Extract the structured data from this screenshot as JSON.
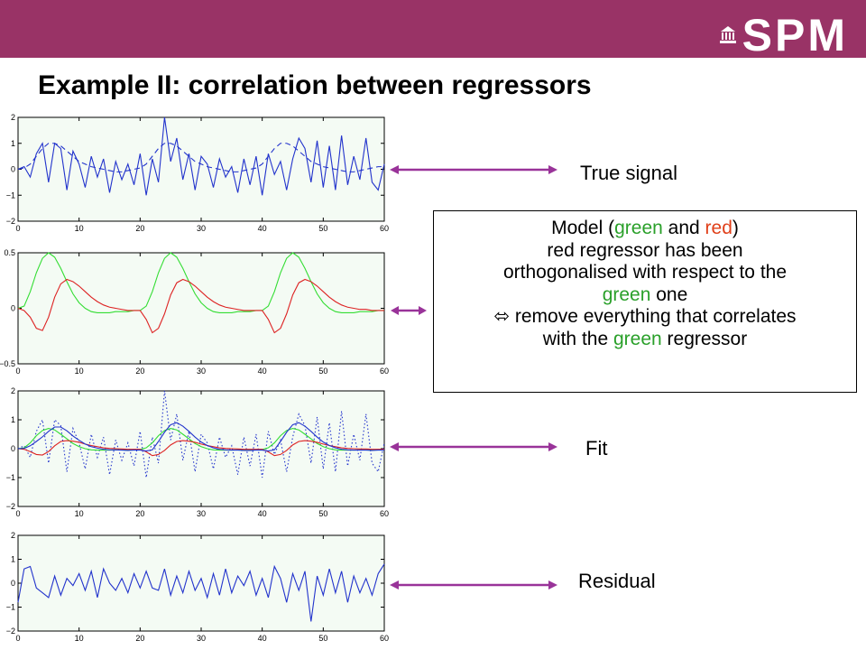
{
  "header": {
    "logo_text": "SPM",
    "colors": {
      "bar": "#993366",
      "logo": "#ffffff"
    }
  },
  "title": "Example II: correlation between regressors",
  "labels": {
    "true_signal": "True signal",
    "fit": "Fit",
    "residual": "Residual"
  },
  "model_box": {
    "line1_pre": "Model (",
    "line1_green": "green",
    "line1_mid": " and ",
    "line1_red": "red",
    "line1_post": ")",
    "line2": "red regressor has been",
    "line3": "orthogonalised with respect to the",
    "line4_green": "green",
    "line4_post": " one",
    "line5": "⬄ remove everything that correlates",
    "line6_pre": "with the ",
    "line6_green": "green",
    "line6_post": " regressor"
  },
  "colors": {
    "arrow": "#993399",
    "plot_bg": "#f4fbf4",
    "blue": "#2233cc",
    "green": "#33dd33",
    "red": "#dd2222"
  },
  "chart_data": [
    {
      "type": "line",
      "xlim": [
        0,
        60
      ],
      "ylim": [
        -2,
        2
      ],
      "xticks": [
        0,
        10,
        20,
        30,
        40,
        50,
        60
      ],
      "yticks": [
        2,
        1,
        0,
        -1,
        -2
      ],
      "yticklabels": [
        "2",
        "1",
        "0",
        "−1",
        "−2"
      ],
      "series": [
        {
          "color": "blue",
          "style": "dashed",
          "values": [
            0,
            0.05,
            0.2,
            0.5,
            0.8,
            1.0,
            1.0,
            0.9,
            0.7,
            0.5,
            0.3,
            0.2,
            0.1,
            0.05,
            0,
            -0.05,
            -0.1,
            -0.1,
            -0.05,
            0,
            0.05,
            0.2,
            0.5,
            0.8,
            1.0,
            1.0,
            0.9,
            0.7,
            0.5,
            0.3,
            0.2,
            0.1,
            0.05,
            0,
            -0.05,
            -0.1,
            -0.1,
            -0.05,
            0,
            0.05,
            0.2,
            0.5,
            0.8,
            1.0,
            1.0,
            0.9,
            0.7,
            0.5,
            0.3,
            0.2,
            0.1,
            0.05,
            0,
            -0.05,
            -0.1,
            -0.1,
            -0.05,
            0,
            0.05,
            0.1,
            0.1
          ]
        },
        {
          "color": "blue",
          "style": "solid",
          "values": [
            0,
            0.1,
            -0.3,
            0.6,
            1.0,
            -0.5,
            1.0,
            0.8,
            -0.8,
            0.7,
            0.2,
            -0.7,
            0.5,
            -0.3,
            0.4,
            -0.9,
            0.3,
            -0.4,
            0.2,
            -0.6,
            0.6,
            -1.0,
            0.4,
            -0.5,
            2.0,
            0.3,
            1.2,
            -0.4,
            0.6,
            -0.8,
            0.5,
            0.2,
            -0.7,
            0.4,
            -0.3,
            0.1,
            -0.9,
            0.4,
            -0.6,
            0.5,
            -1.0,
            0.6,
            -0.2,
            0.3,
            -0.8,
            0.4,
            1.2,
            0.8,
            -0.5,
            1.1,
            -0.7,
            0.9,
            -0.8,
            1.3,
            -0.6,
            0.5,
            -0.4,
            1.2,
            -0.5,
            -0.8,
            0.2
          ]
        }
      ]
    },
    {
      "type": "line",
      "xlim": [
        0,
        60
      ],
      "ylim": [
        -0.5,
        0.5
      ],
      "xticks": [
        0,
        10,
        20,
        30,
        40,
        50,
        60
      ],
      "yticks": [
        0.5,
        0,
        -0.5
      ],
      "yticklabels": [
        "0.5",
        "0",
        "−0.5"
      ],
      "series": [
        {
          "color": "green",
          "style": "solid",
          "values": [
            0,
            0.02,
            0.15,
            0.32,
            0.45,
            0.5,
            0.46,
            0.36,
            0.24,
            0.13,
            0.05,
            0.0,
            -0.03,
            -0.04,
            -0.04,
            -0.04,
            -0.03,
            -0.03,
            -0.03,
            -0.02,
            -0.02,
            0.02,
            0.15,
            0.32,
            0.45,
            0.5,
            0.46,
            0.36,
            0.24,
            0.13,
            0.05,
            0.0,
            -0.03,
            -0.04,
            -0.04,
            -0.04,
            -0.03,
            -0.03,
            -0.03,
            -0.02,
            -0.02,
            0.02,
            0.15,
            0.32,
            0.45,
            0.5,
            0.46,
            0.36,
            0.24,
            0.13,
            0.05,
            0.0,
            -0.03,
            -0.04,
            -0.04,
            -0.04,
            -0.03,
            -0.03,
            -0.03,
            -0.02,
            -0.02
          ]
        },
        {
          "color": "red",
          "style": "solid",
          "values": [
            0,
            -0.02,
            -0.08,
            -0.18,
            -0.2,
            -0.08,
            0.1,
            0.22,
            0.26,
            0.24,
            0.2,
            0.15,
            0.1,
            0.06,
            0.03,
            0.01,
            0.0,
            -0.01,
            -0.02,
            -0.02,
            -0.02,
            -0.1,
            -0.22,
            -0.18,
            -0.05,
            0.12,
            0.23,
            0.26,
            0.24,
            0.2,
            0.15,
            0.1,
            0.06,
            0.03,
            0.01,
            0.0,
            -0.01,
            -0.02,
            -0.02,
            -0.02,
            -0.02,
            -0.1,
            -0.22,
            -0.18,
            -0.05,
            0.12,
            0.23,
            0.26,
            0.24,
            0.2,
            0.15,
            0.1,
            0.06,
            0.03,
            0.01,
            0.0,
            -0.01,
            -0.01,
            -0.02,
            -0.02,
            -0.02
          ]
        }
      ]
    },
    {
      "type": "line",
      "xlim": [
        0,
        60
      ],
      "ylim": [
        -2,
        2
      ],
      "xticks": [
        0,
        10,
        20,
        30,
        40,
        50,
        60
      ],
      "yticks": [
        2,
        1,
        0,
        -1,
        -2
      ],
      "yticklabels": [
        "2",
        "1",
        "0",
        "−1",
        "−2"
      ],
      "series": [
        {
          "color": "blue",
          "style": "dotted",
          "values": [
            0,
            0.1,
            -0.3,
            0.6,
            1.0,
            -0.5,
            1.0,
            0.8,
            -0.8,
            0.7,
            0.2,
            -0.7,
            0.5,
            -0.3,
            0.4,
            -0.9,
            0.3,
            -0.4,
            0.2,
            -0.6,
            0.6,
            -1.0,
            0.4,
            -0.5,
            2.0,
            0.3,
            1.2,
            -0.4,
            0.6,
            -0.8,
            0.5,
            0.2,
            -0.7,
            0.4,
            -0.3,
            0.1,
            -0.9,
            0.4,
            -0.6,
            0.5,
            -1.0,
            0.6,
            -0.2,
            0.3,
            -0.8,
            0.4,
            1.2,
            0.8,
            -0.5,
            1.1,
            -0.7,
            0.9,
            -0.8,
            1.3,
            -0.6,
            0.5,
            -0.4,
            1.2,
            -0.5,
            -0.8,
            0.2
          ]
        },
        {
          "color": "green",
          "style": "solid",
          "values": [
            0,
            0.03,
            0.2,
            0.45,
            0.63,
            0.7,
            0.65,
            0.5,
            0.34,
            0.18,
            0.07,
            0.0,
            -0.04,
            -0.05,
            -0.05,
            -0.05,
            -0.04,
            -0.04,
            -0.04,
            -0.03,
            -0.03,
            0.03,
            0.2,
            0.45,
            0.63,
            0.7,
            0.65,
            0.5,
            0.34,
            0.18,
            0.07,
            0.0,
            -0.04,
            -0.05,
            -0.05,
            -0.05,
            -0.04,
            -0.04,
            -0.04,
            -0.03,
            -0.03,
            0.03,
            0.2,
            0.45,
            0.63,
            0.7,
            0.65,
            0.5,
            0.34,
            0.18,
            0.07,
            0.0,
            -0.04,
            -0.05,
            -0.05,
            -0.05,
            -0.04,
            -0.04,
            -0.04,
            -0.03,
            -0.03
          ]
        },
        {
          "color": "red",
          "style": "solid",
          "values": [
            0,
            -0.02,
            -0.1,
            -0.2,
            -0.22,
            -0.1,
            0.1,
            0.25,
            0.28,
            0.26,
            0.22,
            0.16,
            0.11,
            0.07,
            0.03,
            0.01,
            0.0,
            -0.01,
            -0.02,
            -0.02,
            -0.02,
            -0.11,
            -0.24,
            -0.2,
            -0.06,
            0.13,
            0.25,
            0.28,
            0.26,
            0.22,
            0.16,
            0.11,
            0.07,
            0.03,
            0.01,
            0.0,
            -0.01,
            -0.02,
            -0.02,
            -0.02,
            -0.02,
            -0.11,
            -0.24,
            -0.2,
            -0.06,
            0.13,
            0.25,
            0.28,
            0.26,
            0.22,
            0.16,
            0.11,
            0.07,
            0.03,
            0.01,
            0.0,
            -0.01,
            -0.01,
            -0.02,
            -0.02,
            -0.02
          ]
        },
        {
          "color": "blue",
          "style": "solid",
          "values": [
            0,
            0.01,
            0.1,
            0.25,
            0.41,
            0.6,
            0.75,
            0.75,
            0.62,
            0.44,
            0.29,
            0.16,
            0.07,
            0.02,
            -0.02,
            -0.04,
            -0.04,
            -0.05,
            -0.06,
            -0.05,
            -0.05,
            -0.08,
            -0.04,
            0.25,
            0.57,
            0.83,
            0.9,
            0.78,
            0.6,
            0.4,
            0.23,
            0.11,
            0.03,
            -0.02,
            -0.04,
            -0.05,
            -0.05,
            -0.06,
            -0.06,
            -0.05,
            -0.05,
            -0.08,
            -0.04,
            0.25,
            0.57,
            0.83,
            0.9,
            0.78,
            0.6,
            0.4,
            0.23,
            0.11,
            0.03,
            -0.02,
            -0.04,
            -0.05,
            -0.05,
            -0.05,
            -0.06,
            -0.05,
            -0.05
          ]
        }
      ]
    },
    {
      "type": "line",
      "xlim": [
        0,
        60
      ],
      "ylim": [
        -2,
        2
      ],
      "xticks": [
        0,
        10,
        20,
        30,
        40,
        50,
        60
      ],
      "yticks": [
        2,
        1,
        0,
        -1,
        -2
      ],
      "yticklabels": [
        "2",
        "1",
        "0",
        "−1",
        "−2"
      ],
      "series": [
        {
          "color": "blue",
          "style": "solid",
          "values": [
            -0.8,
            0.6,
            0.7,
            -0.2,
            -0.4,
            -0.6,
            0.3,
            -0.5,
            0.2,
            -0.1,
            0.4,
            -0.3,
            0.5,
            -0.6,
            0.6,
            0.0,
            -0.3,
            0.2,
            -0.4,
            0.4,
            -0.2,
            0.5,
            -0.2,
            -0.3,
            0.6,
            -0.5,
            0.3,
            -0.4,
            0.5,
            -0.3,
            0.2,
            -0.6,
            0.4,
            -0.5,
            0.6,
            -0.4,
            0.3,
            -0.1,
            0.5,
            -0.5,
            0.2,
            -0.6,
            0.7,
            0.2,
            -0.8,
            0.4,
            -0.3,
            0.5,
            -1.6,
            0.3,
            -0.5,
            0.6,
            -0.4,
            0.5,
            -0.8,
            0.3,
            -0.4,
            0.2,
            -0.5,
            0.4,
            0.8
          ]
        }
      ]
    }
  ]
}
